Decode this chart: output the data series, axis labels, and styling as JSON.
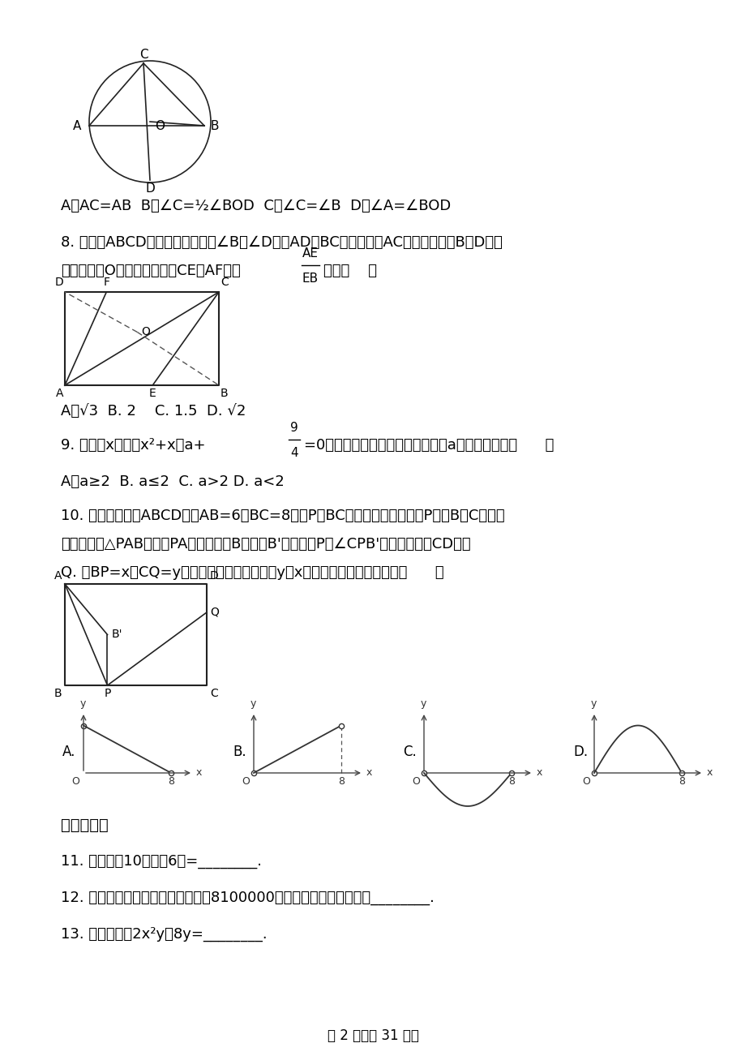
{
  "bg_color": "#ffffff",
  "fig_width": 9.2,
  "fig_height": 13.02,
  "line1_text": "A．AC=AB  B．∠C=½∠BOD  C．∠C=∠B  D．∠A=∠BOD",
  "q8_text": "8. 如图，ABCD是矩形纸片，翻折∠B，∠D，使AD，BC边与对角线AC重叠，且顶点B，D恰好",
  "q8_text2": "落在同一点O上，折痕分别是CE，AF，则",
  "q8_ans": "A．√3  B. 2    C. 1.5  D. √2",
  "q9_ans": "A．a≥2  B. a≤2  C. a>2 D. a<2",
  "q10_text": "10. 如图，在矩形ABCD中，AB=6，BC=8，点P是BC边上的一个动点（点P与点B、C都不重",
  "q10_text2": "合），现将△PAB沿直线PA折叠，使点B落到点B'处；过点P作∠CPB'的角平分线交CD于点",
  "q10_text3": "Q. 设BP=x，CQ=y，则下列图象中，能表示y与x的函数关系的图象大致是（      ）",
  "sec2_title": "二、填空题",
  "q11_text": "11. 计算：－10＋（＋6）=________.",
  "q12_text": "12. 某企业去年为国家缴纳税金达到8100000元，用科学记数法表示为________.",
  "q13_text": "13. 分解因式：2x²y－8y=________.",
  "page_footer": "第 2 页（共 31 页）"
}
